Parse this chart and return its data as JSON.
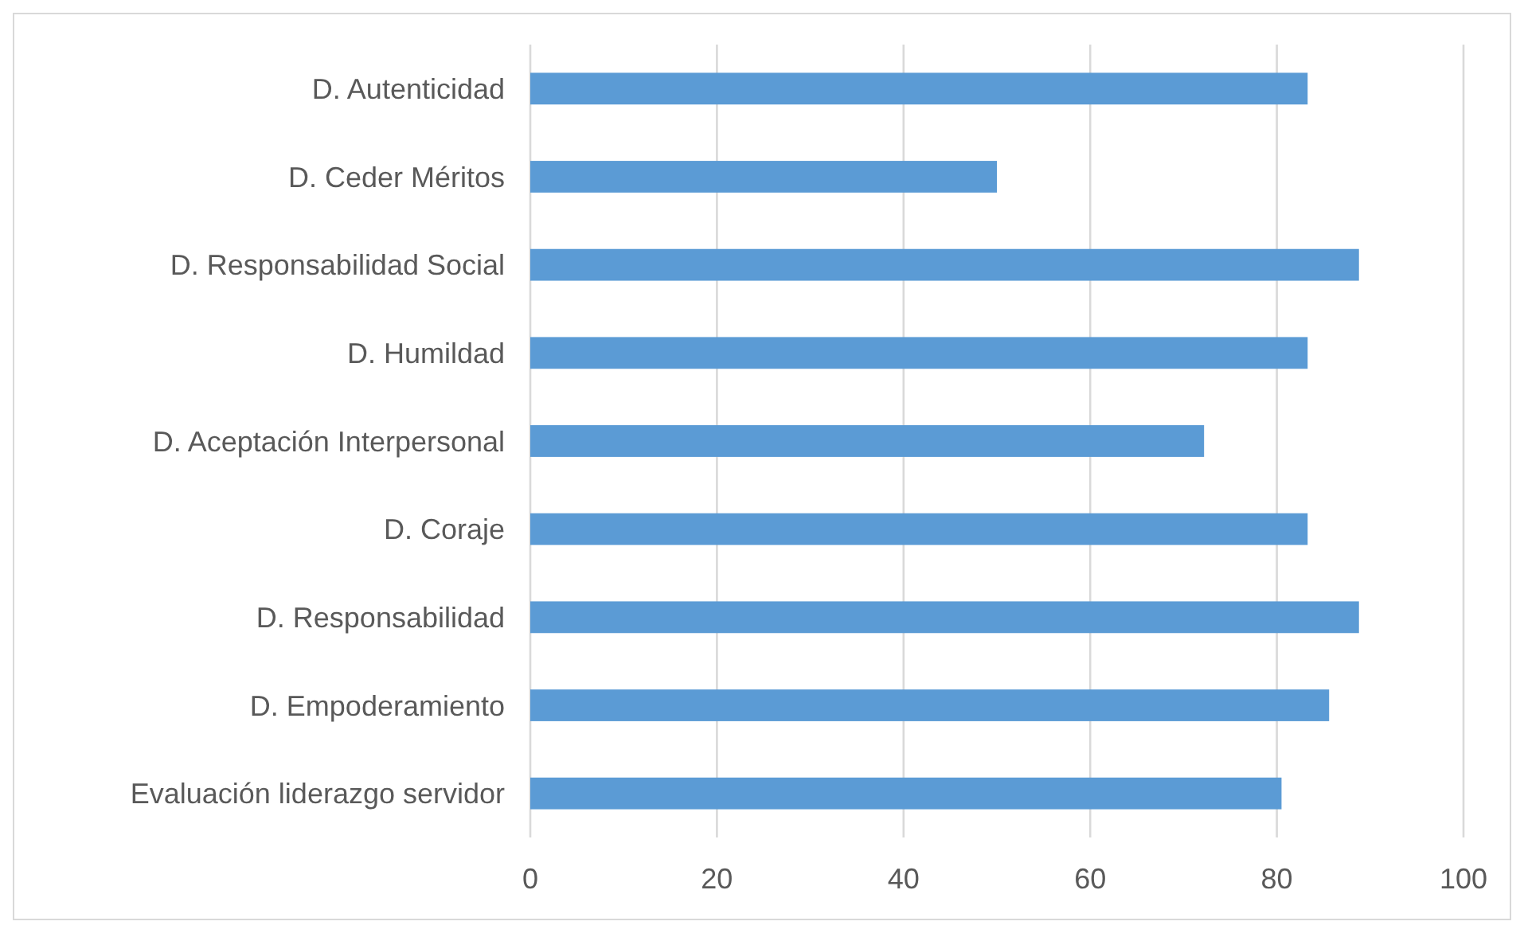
{
  "chart_data": {
    "type": "bar",
    "orientation": "horizontal",
    "categories": [
      "D. Autenticidad",
      "D. Ceder Méritos",
      "D. Responsabilidad Social",
      "D. Humildad",
      "D. Aceptación Interpersonal",
      "D. Coraje",
      "D. Responsabilidad",
      "D. Empoderamiento",
      "Evaluación liderazgo servidor"
    ],
    "values": [
      83.3,
      50,
      88.8,
      83.3,
      72.2,
      83.3,
      88.8,
      85.6,
      80.5
    ],
    "color": "#5b9bd5",
    "xlim": [
      0,
      100
    ],
    "xticks": [
      0,
      20,
      40,
      60,
      80,
      100
    ],
    "grid": "x"
  }
}
